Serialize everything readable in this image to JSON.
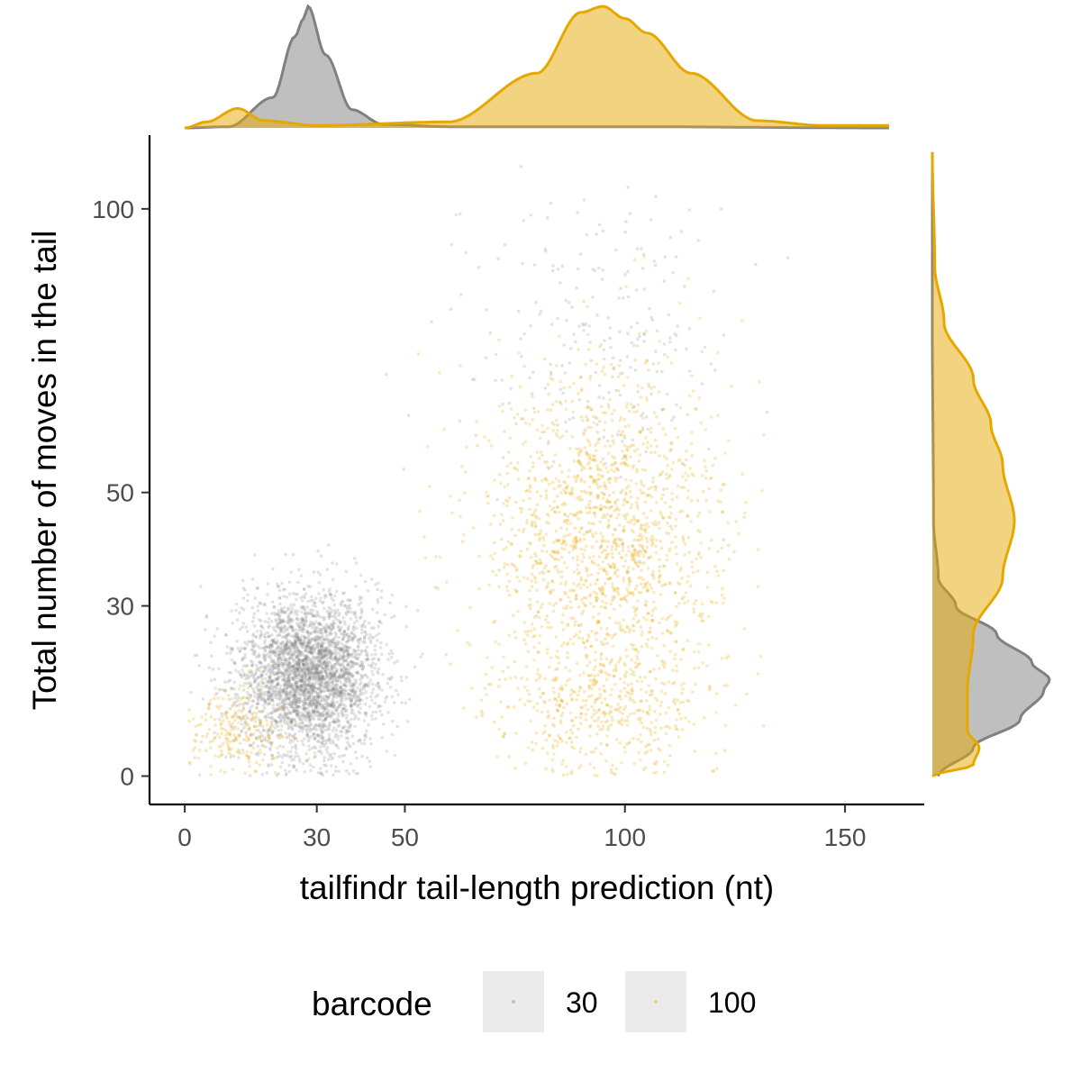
{
  "chart_data": {
    "type": "scatter",
    "title": "",
    "xlabel": "tailfindr tail-length prediction (nt)",
    "ylabel": "Total number of moves in the tail",
    "xlim": [
      -8,
      168
    ],
    "ylim": [
      -5,
      113
    ],
    "x_ticks": [
      "0",
      "30",
      "50",
      "100",
      "150"
    ],
    "y_ticks": [
      "0",
      "30",
      "50",
      "100"
    ],
    "x_tick_values": [
      0,
      30,
      50,
      100,
      150
    ],
    "y_tick_values": [
      0,
      30,
      50,
      100
    ],
    "legend": {
      "title": "barcode",
      "position": "bottom",
      "entries": [
        "30",
        "100"
      ]
    },
    "marginal_density": {
      "top": "x",
      "right": "y"
    },
    "colors": {
      "30": "#808080",
      "100": "#E6A800",
      "axis": "#000000",
      "tick_text": "#4d4d4d",
      "legend_key_bg": "#ebebeb"
    },
    "series": [
      {
        "name": "30",
        "color": "#808080",
        "clusters": [
          {
            "x_mean": 28,
            "x_sd": 8,
            "y_mean": 18,
            "y_sd": 7,
            "n": 3200
          },
          {
            "x_mean": 95,
            "x_sd": 14,
            "y_mean": 75,
            "y_sd": 14,
            "n": 260
          }
        ],
        "x_density": [
          [
            0,
            0.0
          ],
          [
            10,
            0.01
          ],
          [
            20,
            0.25
          ],
          [
            25,
            0.75
          ],
          [
            27,
            0.9
          ],
          [
            28,
            1.0
          ],
          [
            32,
            0.6
          ],
          [
            38,
            0.15
          ],
          [
            45,
            0.03
          ],
          [
            60,
            0.01
          ],
          [
            100,
            0.01
          ],
          [
            160,
            0.0
          ]
        ],
        "y_density": [
          [
            0,
            0.05
          ],
          [
            5,
            0.35
          ],
          [
            10,
            0.75
          ],
          [
            15,
            0.95
          ],
          [
            17,
            1.0
          ],
          [
            20,
            0.85
          ],
          [
            25,
            0.55
          ],
          [
            30,
            0.2
          ],
          [
            35,
            0.05
          ],
          [
            45,
            0.01
          ],
          [
            80,
            0.0
          ],
          [
            110,
            0.0
          ]
        ]
      },
      {
        "name": "100",
        "color": "#E6A800",
        "clusters": [
          {
            "x_mean": 12,
            "x_sd": 6,
            "y_mean": 8,
            "y_sd": 4,
            "n": 220
          },
          {
            "x_mean": 95,
            "x_sd": 13,
            "y_mean": 42,
            "y_sd": 15,
            "n": 1600
          },
          {
            "x_mean": 95,
            "x_sd": 12,
            "y_mean": 12,
            "y_sd": 6,
            "n": 450
          }
        ],
        "x_density": [
          [
            0,
            0.0
          ],
          [
            5,
            0.05
          ],
          [
            12,
            0.16
          ],
          [
            18,
            0.06
          ],
          [
            30,
            0.02
          ],
          [
            60,
            0.05
          ],
          [
            80,
            0.45
          ],
          [
            90,
            0.95
          ],
          [
            95,
            1.0
          ],
          [
            100,
            0.9
          ],
          [
            105,
            0.78
          ],
          [
            115,
            0.45
          ],
          [
            130,
            0.06
          ],
          [
            145,
            0.02
          ],
          [
            160,
            0.02
          ]
        ],
        "y_density": [
          [
            0,
            0.0
          ],
          [
            2,
            0.35
          ],
          [
            5,
            0.4
          ],
          [
            8,
            0.3
          ],
          [
            15,
            0.3
          ],
          [
            25,
            0.35
          ],
          [
            35,
            0.6
          ],
          [
            45,
            0.7
          ],
          [
            55,
            0.6
          ],
          [
            62,
            0.5
          ],
          [
            70,
            0.35
          ],
          [
            80,
            0.1
          ],
          [
            90,
            0.02
          ],
          [
            110,
            0.0
          ]
        ]
      }
    ]
  }
}
